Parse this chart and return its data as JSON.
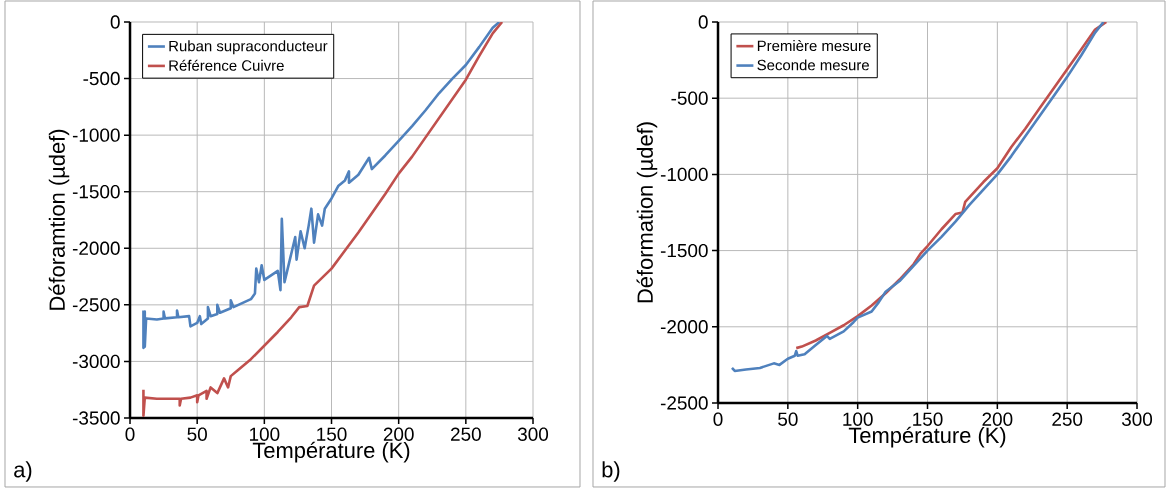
{
  "chart_data": [
    {
      "type": "line",
      "xlabel": "Température (K)",
      "ylabel": "Déforamtion (µdef)",
      "annotations": [
        "a)"
      ],
      "xlim": [
        0,
        300
      ],
      "ylim": [
        -3500,
        0
      ],
      "xticks": [
        0,
        50,
        100,
        150,
        200,
        250,
        300
      ],
      "yticks": [
        -3500,
        -3000,
        -2500,
        -2000,
        -1500,
        -1000,
        -500,
        0
      ],
      "grid": true,
      "legend": "top left",
      "series": [
        {
          "name": "Ruban supraconducteur",
          "color": "#4f81bd",
          "x": [
            10,
            10,
            11,
            11,
            12,
            20,
            25,
            25,
            26,
            35,
            35,
            36,
            44,
            45,
            50,
            52,
            53,
            58,
            58,
            60,
            65,
            65,
            67,
            75,
            75,
            77,
            90,
            93,
            94,
            96,
            98,
            100,
            110,
            112,
            113,
            115,
            117,
            120,
            123,
            124,
            127,
            130,
            133,
            135,
            137,
            140,
            143,
            145,
            150,
            155,
            160,
            163,
            163,
            170,
            178,
            180,
            190,
            200,
            210,
            220,
            230,
            240,
            250,
            260,
            270,
            275
          ],
          "values": [
            -2550,
            -2880,
            -2560,
            -2870,
            -2620,
            -2630,
            -2620,
            -2560,
            -2620,
            -2610,
            -2550,
            -2610,
            -2600,
            -2690,
            -2660,
            -2600,
            -2670,
            -2620,
            -2520,
            -2600,
            -2580,
            -2500,
            -2570,
            -2530,
            -2460,
            -2520,
            -2450,
            -2400,
            -2180,
            -2300,
            -2150,
            -2280,
            -2200,
            -2370,
            -1740,
            -2300,
            -2200,
            -2050,
            -1900,
            -2100,
            -1850,
            -2000,
            -1800,
            -1650,
            -1950,
            -1700,
            -1800,
            -1650,
            -1560,
            -1450,
            -1400,
            -1320,
            -1420,
            -1350,
            -1200,
            -1300,
            -1180,
            -1050,
            -920,
            -780,
            -630,
            -500,
            -380,
            -220,
            -50,
            0
          ]
        },
        {
          "name": "Référence Cuivre",
          "color": "#c0504d",
          "x": [
            10,
            10,
            11,
            20,
            37,
            37,
            38,
            45,
            50,
            50,
            51,
            57,
            57,
            60,
            65,
            70,
            73,
            75,
            80,
            90,
            100,
            110,
            120,
            126,
            132,
            137,
            150,
            170,
            190,
            200,
            210,
            220,
            230,
            240,
            250,
            260,
            270,
            277
          ],
          "values": [
            -3250,
            -3480,
            -3320,
            -3330,
            -3330,
            -3390,
            -3330,
            -3320,
            -3300,
            -3360,
            -3300,
            -3260,
            -3330,
            -3230,
            -3280,
            -3150,
            -3230,
            -3130,
            -3080,
            -2980,
            -2860,
            -2740,
            -2610,
            -2520,
            -2510,
            -2330,
            -2180,
            -1860,
            -1520,
            -1340,
            -1190,
            -1020,
            -850,
            -680,
            -510,
            -300,
            -100,
            0
          ]
        }
      ]
    },
    {
      "type": "line",
      "xlabel": "Température (K)",
      "ylabel": "Déformation (µdef)",
      "annotations": [
        "b)"
      ],
      "xlim": [
        0,
        300
      ],
      "ylim": [
        -2500,
        0
      ],
      "xticks": [
        0,
        50,
        100,
        150,
        200,
        250,
        300
      ],
      "yticks": [
        -2500,
        -2000,
        -1500,
        -1000,
        -500,
        0
      ],
      "grid": true,
      "legend": "top left",
      "series": [
        {
          "name": "Première mesure",
          "color": "#c0504d",
          "x": [
            56,
            60,
            70,
            80,
            90,
            100,
            110,
            120,
            130,
            140,
            145,
            150,
            160,
            170,
            175,
            177,
            190,
            200,
            210,
            220,
            230,
            240,
            250,
            260,
            270,
            278
          ],
          "values": [
            -2140,
            -2130,
            -2090,
            -2040,
            -1990,
            -1930,
            -1860,
            -1780,
            -1690,
            -1590,
            -1520,
            -1470,
            -1360,
            -1260,
            -1250,
            -1180,
            -1050,
            -960,
            -820,
            -700,
            -570,
            -440,
            -310,
            -180,
            -50,
            0
          ]
        },
        {
          "name": "Seconde mesure",
          "color": "#4f81bd",
          "x": [
            10,
            12,
            20,
            30,
            40,
            44,
            50,
            55,
            56,
            57,
            62,
            70,
            78,
            80,
            90,
            97,
            100,
            110,
            115,
            120,
            130,
            140,
            150,
            160,
            170,
            180,
            190,
            200,
            210,
            220,
            230,
            240,
            250,
            260,
            270,
            276
          ],
          "values": [
            -2270,
            -2290,
            -2280,
            -2270,
            -2240,
            -2250,
            -2210,
            -2190,
            -2160,
            -2190,
            -2180,
            -2120,
            -2060,
            -2080,
            -2030,
            -1970,
            -1940,
            -1900,
            -1840,
            -1770,
            -1700,
            -1600,
            -1500,
            -1410,
            -1310,
            -1200,
            -1100,
            -1000,
            -880,
            -750,
            -620,
            -490,
            -360,
            -220,
            -70,
            0
          ]
        }
      ]
    }
  ]
}
